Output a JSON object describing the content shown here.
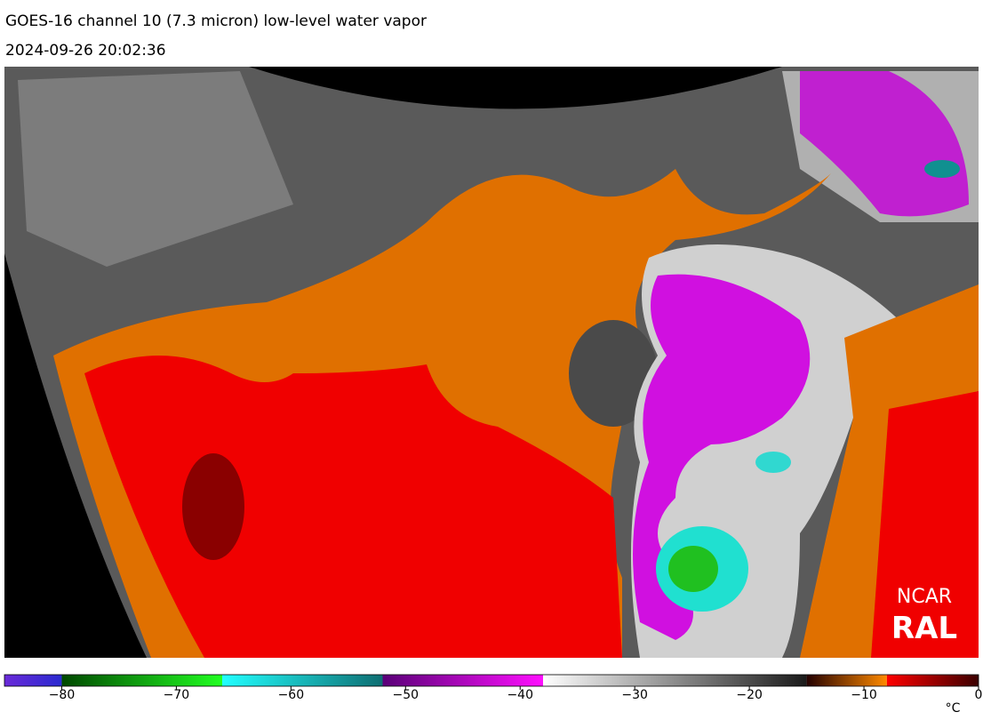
{
  "header": {
    "title": "GOES-16 channel 10 (7.3 micron) low-level water vapor",
    "timestamp": "2024-09-26 20:02:36"
  },
  "logo": {
    "line1": "NCAR",
    "line2": "RAL"
  },
  "colorbar": {
    "lim": [
      -85,
      0
    ],
    "segments": [
      {
        "from": -85,
        "to": -80,
        "colors": [
          "#6a2ad8",
          "#2a2ad0"
        ]
      },
      {
        "from": -80,
        "to": -66,
        "colors": [
          "#004800",
          "#22ff22"
        ]
      },
      {
        "from": -66,
        "to": -52,
        "colors": [
          "#22ffff",
          "#0e6e72"
        ]
      },
      {
        "from": -52,
        "to": -38,
        "colors": [
          "#5a0078",
          "#ff10ff"
        ]
      },
      {
        "from": -38,
        "to": -15,
        "colors": [
          "#ffffff",
          "#1a1a1a"
        ]
      },
      {
        "from": -15,
        "to": -8,
        "colors": [
          "#240000",
          "#ff8a00"
        ]
      },
      {
        "from": -8,
        "to": 0,
        "colors": [
          "#ff0000",
          "#3a0000"
        ]
      }
    ],
    "ticks": [
      {
        "value": -80,
        "label": "−80"
      },
      {
        "value": -70,
        "label": "−70"
      },
      {
        "value": -60,
        "label": "−60"
      },
      {
        "value": -50,
        "label": "−50"
      },
      {
        "value": -40,
        "label": "−40"
      },
      {
        "value": -30,
        "label": "−30"
      },
      {
        "value": -20,
        "label": "−20"
      },
      {
        "value": -10,
        "label": "−10"
      },
      0
    ],
    "unit": "°C"
  }
}
